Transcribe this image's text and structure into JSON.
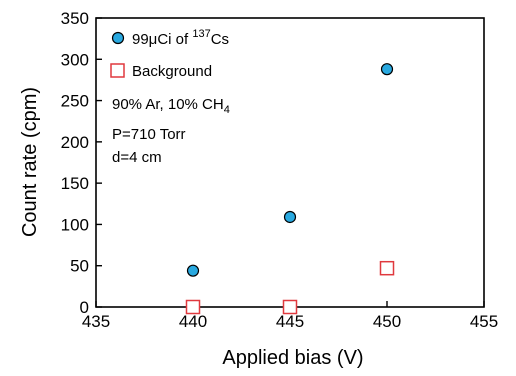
{
  "chart_data": {
    "type": "scatter",
    "xlabel": "Applied bias (V)",
    "ylabel": "Count rate (cpm)",
    "xlim": [
      435,
      455
    ],
    "ylim": [
      0,
      350
    ],
    "xticks": [
      "435",
      "440",
      "445",
      "450",
      "455"
    ],
    "yticks": [
      "0",
      "50",
      "100",
      "150",
      "200",
      "250",
      "300",
      "350"
    ],
    "grid": false,
    "legend_position": "top-left",
    "series": [
      {
        "name_prefix": "99μCi of ",
        "name_sup": "137",
        "name_suffix": "Cs",
        "marker": "circle",
        "color": "#29a9e0",
        "x": [
          440,
          445,
          450
        ],
        "y": [
          44,
          109,
          288
        ]
      },
      {
        "name": "Background",
        "marker": "square-open",
        "color": "#e0393e",
        "x": [
          440,
          445,
          450
        ],
        "y": [
          0,
          0,
          47
        ]
      }
    ],
    "annotations": {
      "gas_prefix": "90% Ar, 10% CH",
      "gas_sub": "4",
      "pressure": "P=710 Torr",
      "distance": "d=4 cm"
    }
  }
}
